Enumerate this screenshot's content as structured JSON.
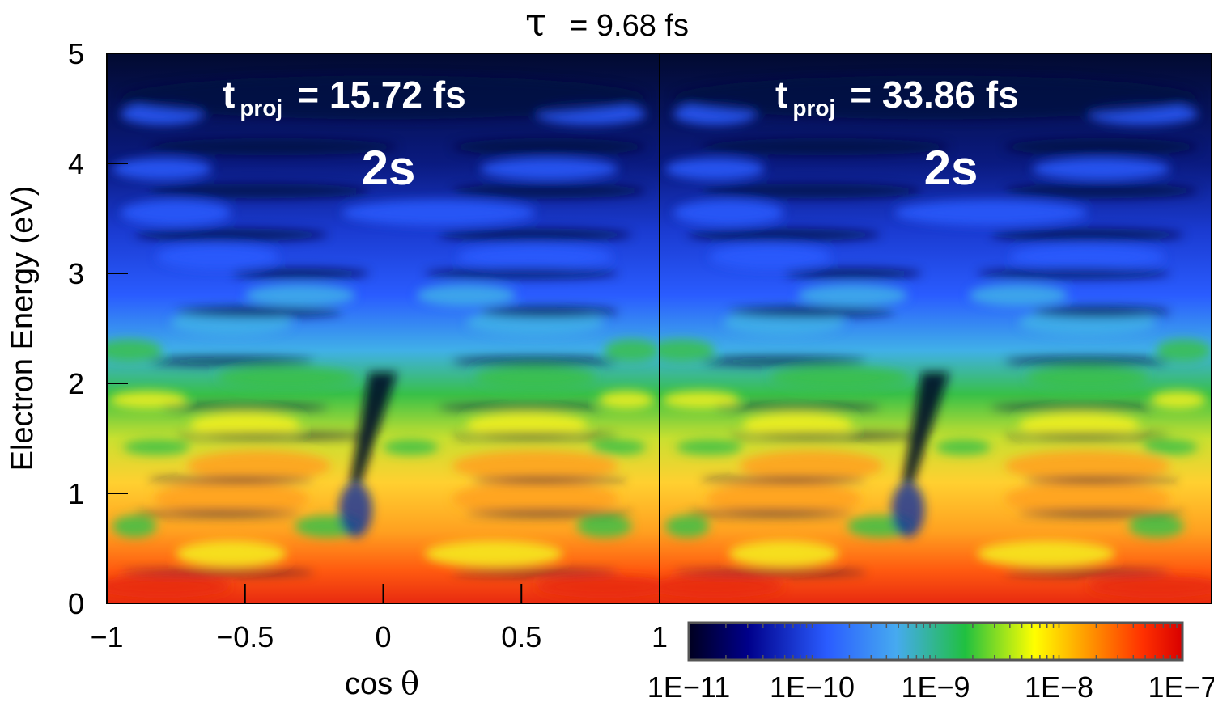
{
  "chart_data": {
    "type": "heatmap",
    "title_symbol": "τ",
    "title_value": "= 9.68 fs",
    "xlabel_text": "cos",
    "xlabel_symbol": "θ",
    "ylabel": "Electron Energy (eV)",
    "xlim": [
      -1,
      1
    ],
    "ylim": [
      0,
      5
    ],
    "x_ticks": [
      "−1",
      "−0.5",
      "0",
      "0.5",
      "1"
    ],
    "y_ticks": [
      "0",
      "1",
      "2",
      "3",
      "4",
      "5"
    ],
    "panels": [
      {
        "t_label": "t",
        "t_sub": "proj",
        "t_value": "= 15.72 fs",
        "state": "2s"
      },
      {
        "t_label": "t",
        "t_sub": "proj",
        "t_value": "= 33.86 fs",
        "state": "2s"
      }
    ],
    "colorbar": {
      "ticks": [
        "1E−11",
        "1E−10",
        "1E−9",
        "1E−8",
        "1E−7"
      ],
      "colors": [
        "#000020",
        "#00008a",
        "#2a5cff",
        "#46aaf0",
        "#20c040",
        "#ffff00",
        "#ffa000",
        "#ff3000",
        "#d80000"
      ]
    },
    "colors": {
      "band_red": "#e82a10",
      "band_orange": "#ffa020",
      "band_yellow": "#f5f020",
      "band_green": "#38c048",
      "band_cyan": "#40b0e8",
      "band_blue": "#2a5cff",
      "band_navy": "#020a30"
    }
  }
}
